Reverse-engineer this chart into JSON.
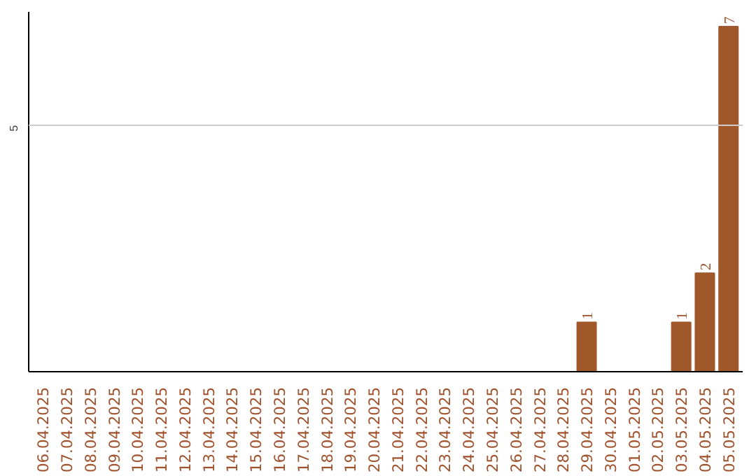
{
  "chart_data": {
    "type": "bar",
    "categories": [
      "06.04.2025",
      "07.04.2025",
      "08.04.2025",
      "09.04.2025",
      "10.04.2025",
      "11.04.2025",
      "12.04.2025",
      "13.04.2025",
      "14.04.2025",
      "15.04.2025",
      "16.04.2025",
      "17.04.2025",
      "18.04.2025",
      "19.04.2025",
      "20.04.2025",
      "21.04.2025",
      "22.04.2025",
      "23.04.2025",
      "24.04.2025",
      "25.04.2025",
      "26.04.2025",
      "27.04.2025",
      "28.04.2025",
      "29.04.2025",
      "30.04.2025",
      "01.05.2025",
      "02.05.2025",
      "03.05.2025",
      "04.05.2025",
      "05.05.2025"
    ],
    "values": [
      null,
      null,
      null,
      null,
      null,
      null,
      null,
      null,
      null,
      null,
      null,
      null,
      null,
      null,
      null,
      null,
      null,
      null,
      null,
      null,
      null,
      null,
      null,
      1,
      null,
      null,
      null,
      1,
      2,
      7
    ],
    "value_labels": [
      null,
      null,
      null,
      null,
      null,
      null,
      null,
      null,
      null,
      null,
      null,
      null,
      null,
      null,
      null,
      null,
      null,
      null,
      null,
      null,
      null,
      null,
      null,
      "1",
      null,
      null,
      null,
      "1",
      "2",
      "7"
    ],
    "ylim": [
      0,
      7.3
    ],
    "ref_lines": [
      {
        "axis": "y",
        "value": 5,
        "label": "5",
        "color": "#cccccc"
      }
    ],
    "color": "#a0582a"
  }
}
